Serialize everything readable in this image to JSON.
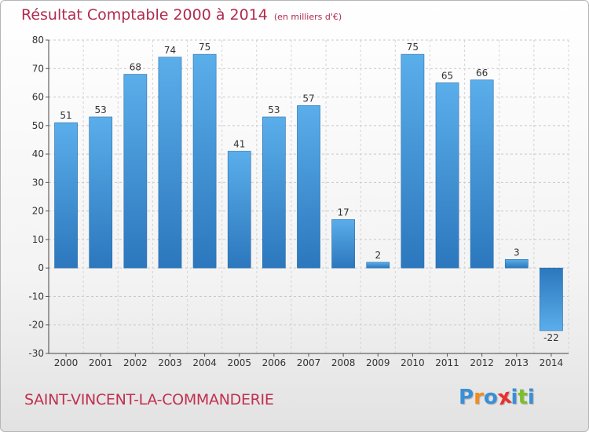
{
  "header": {
    "title": "Résultat Comptable 2000 à 2014",
    "subtitle": "(en milliers d'€)"
  },
  "footer": {
    "commune": "SAINT-VINCENT-LA-COMMANDERIE",
    "logo_letters": [
      "P",
      "r",
      "o",
      "x",
      "i",
      "t",
      "i"
    ],
    "logo_colors": [
      "#3a8fd6",
      "#f28c1e",
      "#3a8fd6",
      "#e8302f",
      "#3a8fd6",
      "#7cbf2a",
      "#3a8fd6"
    ]
  },
  "chart_data": {
    "type": "bar",
    "title": "Résultat Comptable 2000 à 2014",
    "categories": [
      "2000",
      "2001",
      "2002",
      "2003",
      "2004",
      "2005",
      "2006",
      "2007",
      "2008",
      "2009",
      "2010",
      "2011",
      "2012",
      "2013",
      "2014"
    ],
    "values": [
      51,
      53,
      68,
      74,
      75,
      41,
      53,
      57,
      17,
      2,
      75,
      65,
      66,
      3,
      -22
    ],
    "data_labels": [
      "51",
      "53",
      "68",
      "74",
      "75",
      "41",
      "53",
      "57",
      "17",
      "2",
      "75",
      "65",
      "66",
      "3",
      "-22"
    ],
    "ylim": [
      -30,
      80
    ],
    "yticks": [
      -30,
      -20,
      -10,
      0,
      10,
      20,
      30,
      40,
      50,
      60,
      70,
      80
    ],
    "ytick_labels": [
      "-30",
      "-20",
      "-10",
      "0",
      "10",
      "20",
      "30",
      "40",
      "50",
      "60",
      "70",
      "80"
    ],
    "grid": true,
    "bar_color_light": "#5aaeea",
    "bar_color_dark": "#2c77bd"
  }
}
